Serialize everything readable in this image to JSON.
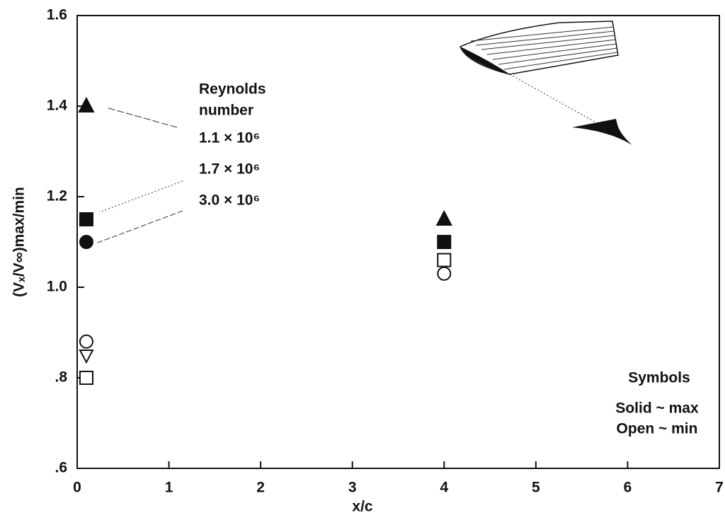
{
  "chart_data": {
    "type": "scatter",
    "xlabel": "x/c",
    "ylabel": "(Vₓ/V∞)max/min",
    "xlim": [
      0,
      7
    ],
    "xticks": [
      0,
      1,
      2,
      3,
      4,
      5,
      6,
      7
    ],
    "ylim": [
      0.6,
      1.6
    ],
    "yticks": [
      {
        "value": 0.6,
        "label": ".6"
      },
      {
        "value": 0.8,
        "label": ".8"
      },
      {
        "value": 1.0,
        "label": "1.0"
      },
      1.2,
      1.4,
      1.6
    ],
    "x": [
      0.1,
      4
    ],
    "legend_title": [
      "Reynolds",
      "number"
    ],
    "series": [
      {
        "name": "1.1 × 10⁶",
        "marker": "triangle",
        "min_marker": "triangle-down",
        "color": "#111111",
        "max": [
          1.4,
          1.15
        ],
        "min": [
          0.85,
          null
        ]
      },
      {
        "name": "1.7 × 10⁶",
        "marker": "square",
        "color": "#111111",
        "max": [
          1.15,
          1.1
        ],
        "min": [
          0.8,
          1.06
        ]
      },
      {
        "name": "3.0 × 10⁶",
        "marker": "circle",
        "color": "#111111",
        "max": [
          1.1,
          1.1
        ],
        "min": [
          0.88,
          1.03
        ]
      }
    ],
    "symbols_note": [
      "Symbols",
      "Solid ~ max",
      "Open ~ min"
    ]
  }
}
